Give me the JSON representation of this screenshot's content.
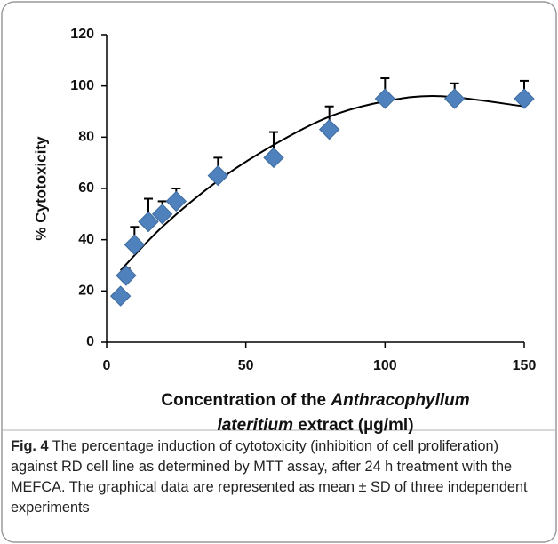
{
  "chart_data": {
    "type": "scatter",
    "ylabel": "% Cytotoxicity",
    "xlabel_lines": [
      [
        {
          "text": "Concentration of the "
        },
        {
          "text": "Anthracophyllum",
          "italic": true
        }
      ],
      [
        {
          "text": "lateritium",
          "italic": true
        },
        {
          "text": " extract (µg/ml)"
        }
      ]
    ],
    "x": [
      5,
      7,
      10,
      15,
      20,
      25,
      40,
      60,
      80,
      100,
      125,
      150
    ],
    "values": [
      18,
      26,
      38,
      47,
      50,
      55,
      65,
      72,
      83,
      95,
      95,
      95
    ],
    "errors": [
      2,
      3,
      7,
      9,
      5,
      5,
      7,
      10,
      9,
      8,
      6,
      7
    ],
    "color": "#4f81bd",
    "error_color": "#000000",
    "trendline": {
      "x": [
        5,
        20,
        40,
        60,
        80,
        100,
        120,
        150
      ],
      "y": [
        28,
        45,
        63,
        77,
        88,
        94,
        96,
        92
      ],
      "color": "#000000"
    },
    "xlim": [
      0,
      150
    ],
    "xticks": [
      0,
      50,
      100,
      150
    ],
    "ylim": [
      0,
      120
    ],
    "yticks": [
      0,
      20,
      40,
      60,
      80,
      100,
      120
    ]
  },
  "caption": {
    "label": "Fig. 4",
    "text": " The percentage induction of cytotoxicity (inhibition of cell proliferation) against RD cell line as determined by MTT assay, after 24 h treatment with the MEFCA. The graphical data are represented as mean ± SD of three independent experiments"
  }
}
